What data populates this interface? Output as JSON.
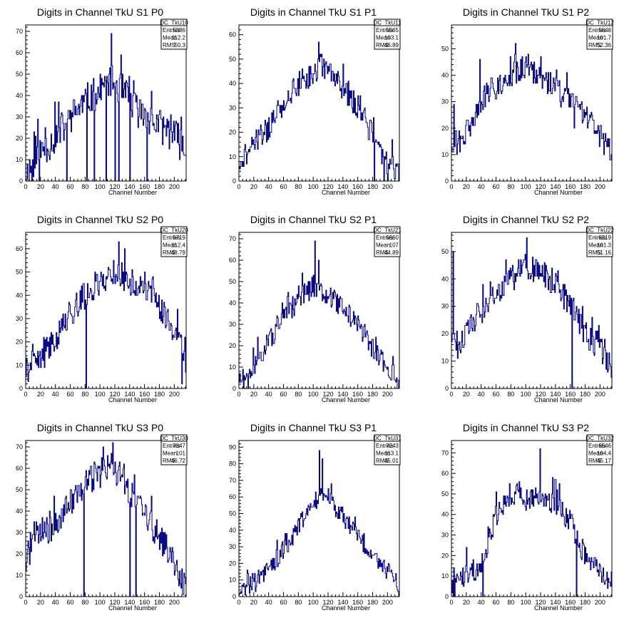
{
  "colors": {
    "histogram": "#000080",
    "axis": "#000000",
    "background": "#ffffff"
  },
  "chart_data": [
    {
      "type": "histogram",
      "title": "Digits in Channel TkU S1 P0",
      "xlabel": "Channel Number",
      "ylabel": "",
      "xlim": [
        0,
        216
      ],
      "ylim": [
        0,
        73
      ],
      "xticks": [
        0,
        20,
        40,
        60,
        80,
        100,
        120,
        140,
        160,
        180,
        200
      ],
      "yticks": [
        0,
        10,
        20,
        30,
        40,
        50,
        60,
        70
      ],
      "stats": {
        "name": "DC_TkU10",
        "rows": [
          {
            "label": "Entries",
            "value": "5386"
          },
          {
            "label": "Mean",
            "value": "112.2"
          },
          {
            "label": "RMS",
            "value": "50.3"
          }
        ]
      },
      "profile": [
        [
          0,
          3
        ],
        [
          10,
          8
        ],
        [
          20,
          14
        ],
        [
          40,
          20
        ],
        [
          60,
          30
        ],
        [
          80,
          37
        ],
        [
          100,
          42
        ],
        [
          115,
          48
        ],
        [
          130,
          42
        ],
        [
          150,
          33
        ],
        [
          170,
          28
        ],
        [
          190,
          24
        ],
        [
          205,
          20
        ],
        [
          216,
          12
        ]
      ],
      "noise": 8,
      "seed": 11,
      "spikes": [
        [
          8,
          0
        ],
        [
          18,
          0
        ],
        [
          55,
          0
        ],
        [
          82,
          0
        ],
        [
          92,
          0
        ],
        [
          108,
          0
        ],
        [
          115,
          69
        ],
        [
          120,
          0
        ],
        [
          125,
          0
        ],
        [
          140,
          0
        ],
        [
          163,
          0
        ]
      ]
    },
    {
      "type": "histogram",
      "title": "Digits in Channel TkU S1 P1",
      "xlabel": "Channel Number",
      "ylabel": "",
      "xlim": [
        0,
        216
      ],
      "ylim": [
        0,
        64
      ],
      "xticks": [
        0,
        20,
        40,
        60,
        80,
        100,
        120,
        140,
        160,
        180,
        200
      ],
      "yticks": [
        0,
        10,
        20,
        30,
        40,
        50,
        60
      ],
      "stats": {
        "name": "DC_TkU11",
        "rows": [
          {
            "label": "Entries",
            "value": "5565"
          },
          {
            "label": "Mean",
            "value": "103.1"
          },
          {
            "label": "RMS",
            "value": "46.89"
          }
        ]
      },
      "profile": [
        [
          0,
          8
        ],
        [
          20,
          14
        ],
        [
          40,
          22
        ],
        [
          60,
          32
        ],
        [
          80,
          40
        ],
        [
          100,
          44
        ],
        [
          110,
          48
        ],
        [
          130,
          42
        ],
        [
          150,
          35
        ],
        [
          170,
          25
        ],
        [
          185,
          15
        ],
        [
          200,
          8
        ],
        [
          216,
          3
        ]
      ],
      "noise": 5,
      "seed": 21,
      "spikes": [
        [
          107,
          57
        ],
        [
          140,
          48
        ],
        [
          182,
          0
        ],
        [
          195,
          0
        ],
        [
          200,
          0
        ]
      ]
    },
    {
      "type": "histogram",
      "title": "Digits in Channel TkU S1 P2",
      "xlabel": "Channel Number",
      "ylabel": "",
      "xlim": [
        0,
        216
      ],
      "ylim": [
        0,
        59
      ],
      "xticks": [
        0,
        20,
        40,
        60,
        80,
        100,
        120,
        140,
        160,
        180,
        200
      ],
      "yticks": [
        0,
        10,
        20,
        30,
        40,
        50
      ],
      "stats": {
        "name": "DC_TkU12",
        "rows": [
          {
            "label": "Entries",
            "value": "5648"
          },
          {
            "label": "Mean",
            "value": "101.7"
          },
          {
            "label": "RMS",
            "value": "52.36"
          }
        ]
      },
      "profile": [
        [
          0,
          16
        ],
        [
          10,
          14
        ],
        [
          20,
          18
        ],
        [
          40,
          30
        ],
        [
          60,
          36
        ],
        [
          80,
          40
        ],
        [
          100,
          42
        ],
        [
          120,
          40
        ],
        [
          140,
          35
        ],
        [
          160,
          30
        ],
        [
          180,
          25
        ],
        [
          200,
          17
        ],
        [
          216,
          10
        ]
      ],
      "noise": 5,
      "seed": 31,
      "spikes": [
        [
          3,
          29
        ],
        [
          38,
          46
        ],
        [
          103,
          48
        ],
        [
          120,
          47
        ],
        [
          165,
          20
        ]
      ]
    },
    {
      "type": "histogram",
      "title": "Digits in Channel TkU S2 P0",
      "xlabel": "Channel Number",
      "ylabel": "",
      "xlim": [
        0,
        216
      ],
      "ylim": [
        0,
        67
      ],
      "xticks": [
        0,
        20,
        40,
        60,
        80,
        100,
        120,
        140,
        160,
        180,
        200
      ],
      "yticks": [
        0,
        10,
        20,
        30,
        40,
        50,
        60
      ],
      "stats": {
        "name": "DC_TkU20",
        "rows": [
          {
            "label": "Entries",
            "value": "6719"
          },
          {
            "label": "Mean",
            "value": "112.4"
          },
          {
            "label": "RMS",
            "value": "48.79"
          }
        ]
      },
      "profile": [
        [
          0,
          8
        ],
        [
          20,
          12
        ],
        [
          40,
          22
        ],
        [
          60,
          32
        ],
        [
          80,
          40
        ],
        [
          100,
          46
        ],
        [
          120,
          50
        ],
        [
          140,
          46
        ],
        [
          160,
          42
        ],
        [
          180,
          36
        ],
        [
          200,
          25
        ],
        [
          216,
          12
        ]
      ],
      "noise": 6,
      "seed": 41,
      "spikes": [
        [
          81,
          0
        ],
        [
          125,
          63
        ],
        [
          133,
          60
        ],
        [
          210,
          2
        ]
      ]
    },
    {
      "type": "histogram",
      "title": "Digits in Channel TkU S2 P1",
      "xlabel": "Channel Number",
      "ylabel": "",
      "xlim": [
        0,
        216
      ],
      "ylim": [
        0,
        73
      ],
      "xticks": [
        0,
        20,
        40,
        60,
        80,
        100,
        120,
        140,
        160,
        180,
        200
      ],
      "yticks": [
        0,
        10,
        20,
        30,
        40,
        50,
        60,
        70
      ],
      "stats": {
        "name": "DC_TkU21",
        "rows": [
          {
            "label": "Entries",
            "value": "5660"
          },
          {
            "label": "Mean",
            "value": "107"
          },
          {
            "label": "RMS",
            "value": "44.89"
          }
        ]
      },
      "profile": [
        [
          0,
          5
        ],
        [
          10,
          4
        ],
        [
          20,
          10
        ],
        [
          40,
          22
        ],
        [
          60,
          32
        ],
        [
          80,
          42
        ],
        [
          100,
          48
        ],
        [
          120,
          44
        ],
        [
          140,
          38
        ],
        [
          160,
          30
        ],
        [
          180,
          18
        ],
        [
          200,
          10
        ],
        [
          216,
          3
        ]
      ],
      "noise": 5,
      "seed": 51,
      "spikes": [
        [
          6,
          0
        ],
        [
          12,
          0
        ],
        [
          102,
          69
        ],
        [
          107,
          60
        ]
      ]
    },
    {
      "type": "histogram",
      "title": "Digits in Channel TkU S2 P2",
      "xlabel": "Channel Number",
      "ylabel": "",
      "xlim": [
        0,
        216
      ],
      "ylim": [
        0,
        57
      ],
      "xticks": [
        0,
        20,
        40,
        60,
        80,
        100,
        120,
        140,
        160,
        180,
        200
      ],
      "yticks": [
        0,
        10,
        20,
        30,
        40,
        50
      ],
      "stats": {
        "name": "DC_TkU22",
        "rows": [
          {
            "label": "Entries",
            "value": "6319"
          },
          {
            "label": "Mean",
            "value": "101.3"
          },
          {
            "label": "RMS",
            "value": "51.16"
          }
        ]
      },
      "profile": [
        [
          0,
          20
        ],
        [
          10,
          15
        ],
        [
          20,
          20
        ],
        [
          40,
          28
        ],
        [
          60,
          34
        ],
        [
          80,
          40
        ],
        [
          100,
          44
        ],
        [
          120,
          42
        ],
        [
          140,
          38
        ],
        [
          160,
          30
        ],
        [
          180,
          20
        ],
        [
          200,
          15
        ],
        [
          216,
          8
        ]
      ],
      "noise": 5,
      "seed": 61,
      "spikes": [
        [
          2,
          50
        ],
        [
          101,
          55
        ],
        [
          162,
          0
        ]
      ]
    },
    {
      "type": "histogram",
      "title": "Digits in Channel TkU S3 P0",
      "xlabel": "Channel Number",
      "ylabel": "",
      "xlim": [
        0,
        216
      ],
      "ylim": [
        0,
        73
      ],
      "xticks": [
        0,
        20,
        40,
        60,
        80,
        100,
        120,
        140,
        160,
        180,
        200
      ],
      "yticks": [
        0,
        10,
        20,
        30,
        40,
        50,
        60,
        70
      ],
      "stats": {
        "name": "DC_TkU30",
        "rows": [
          {
            "label": "Entries",
            "value": "7347"
          },
          {
            "label": "Mean",
            "value": "101"
          },
          {
            "label": "RMS",
            "value": "46.72"
          }
        ]
      },
      "profile": [
        [
          0,
          15
        ],
        [
          10,
          28
        ],
        [
          20,
          30
        ],
        [
          40,
          32
        ],
        [
          60,
          45
        ],
        [
          80,
          52
        ],
        [
          100,
          58
        ],
        [
          120,
          60
        ],
        [
          140,
          50
        ],
        [
          160,
          38
        ],
        [
          180,
          28
        ],
        [
          200,
          15
        ],
        [
          216,
          4
        ]
      ],
      "noise": 7,
      "seed": 71,
      "spikes": [
        [
          78,
          0
        ],
        [
          140,
          0
        ],
        [
          148,
          0
        ]
      ]
    },
    {
      "type": "histogram",
      "title": "Digits in Channel TkU S3 P1",
      "xlabel": "Channel Number",
      "ylabel": "",
      "xlim": [
        0,
        216
      ],
      "ylim": [
        0,
        94
      ],
      "xticks": [
        0,
        20,
        40,
        60,
        80,
        100,
        120,
        140,
        160,
        180,
        200
      ],
      "yticks": [
        0,
        10,
        20,
        30,
        40,
        50,
        60,
        70,
        80,
        90
      ],
      "stats": {
        "name": "DC_TkU31",
        "rows": [
          {
            "label": "Entries",
            "value": "7243"
          },
          {
            "label": "Mean",
            "value": "113.1"
          },
          {
            "label": "RMS",
            "value": "45.01"
          }
        ]
      },
      "profile": [
        [
          0,
          4
        ],
        [
          20,
          8
        ],
        [
          40,
          16
        ],
        [
          60,
          28
        ],
        [
          80,
          42
        ],
        [
          100,
          55
        ],
        [
          110,
          62
        ],
        [
          120,
          60
        ],
        [
          140,
          48
        ],
        [
          160,
          36
        ],
        [
          180,
          26
        ],
        [
          200,
          16
        ],
        [
          216,
          5
        ]
      ],
      "noise": 6,
      "seed": 81,
      "spikes": [
        [
          108,
          88
        ],
        [
          112,
          83
        ]
      ]
    },
    {
      "type": "histogram",
      "title": "Digits in Channel TkU S3 P2",
      "xlabel": "Channel Number",
      "ylabel": "",
      "xlim": [
        0,
        216
      ],
      "ylim": [
        0,
        76
      ],
      "xticks": [
        0,
        20,
        40,
        60,
        80,
        100,
        120,
        140,
        160,
        180,
        200
      ],
      "yticks": [
        0,
        10,
        20,
        30,
        40,
        50,
        60,
        70
      ],
      "stats": {
        "name": "DC_TkU32",
        "rows": [
          {
            "label": "Entries",
            "value": "6546"
          },
          {
            "label": "Mean",
            "value": "104.4"
          },
          {
            "label": "RMS",
            "value": "45.17"
          }
        ]
      },
      "profile": [
        [
          0,
          5
        ],
        [
          20,
          12
        ],
        [
          40,
          15
        ],
        [
          50,
          25
        ],
        [
          60,
          40
        ],
        [
          80,
          50
        ],
        [
          100,
          48
        ],
        [
          120,
          50
        ],
        [
          140,
          45
        ],
        [
          160,
          36
        ],
        [
          180,
          20
        ],
        [
          200,
          12
        ],
        [
          216,
          3
        ]
      ],
      "noise": 6,
      "seed": 91,
      "spikes": [
        [
          4,
          0
        ],
        [
          42,
          0
        ],
        [
          119,
          72
        ],
        [
          168,
          0
        ]
      ]
    }
  ]
}
